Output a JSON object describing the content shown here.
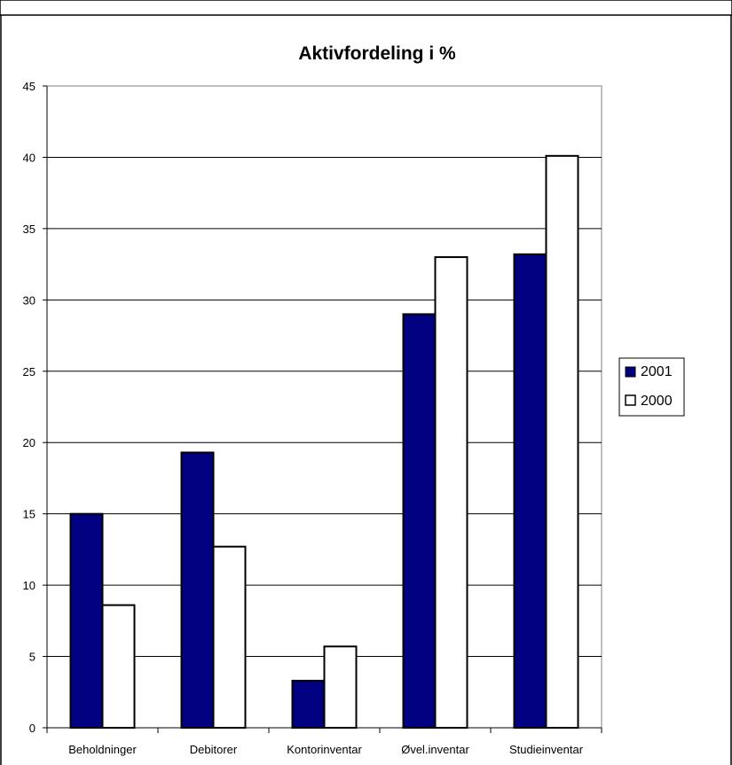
{
  "chart_data": {
    "type": "bar",
    "title": "Aktivfordeling i %",
    "categories": [
      "Beholdninger",
      "Debitorer",
      "Kontorinventar",
      "Øvel.inventar",
      "Studieinventar"
    ],
    "series": [
      {
        "name": "2001",
        "values": [
          15.0,
          19.3,
          3.3,
          29.0,
          33.2
        ],
        "color": "#000080"
      },
      {
        "name": "2000",
        "values": [
          8.6,
          12.7,
          5.7,
          33.0,
          40.1
        ],
        "color": "#ffffff"
      }
    ],
    "yticks": [
      "0",
      "5",
      "10",
      "15",
      "20",
      "25",
      "30",
      "35",
      "40",
      "45"
    ],
    "ylim": [
      0,
      45
    ],
    "grid": true,
    "legend_position": "right"
  }
}
